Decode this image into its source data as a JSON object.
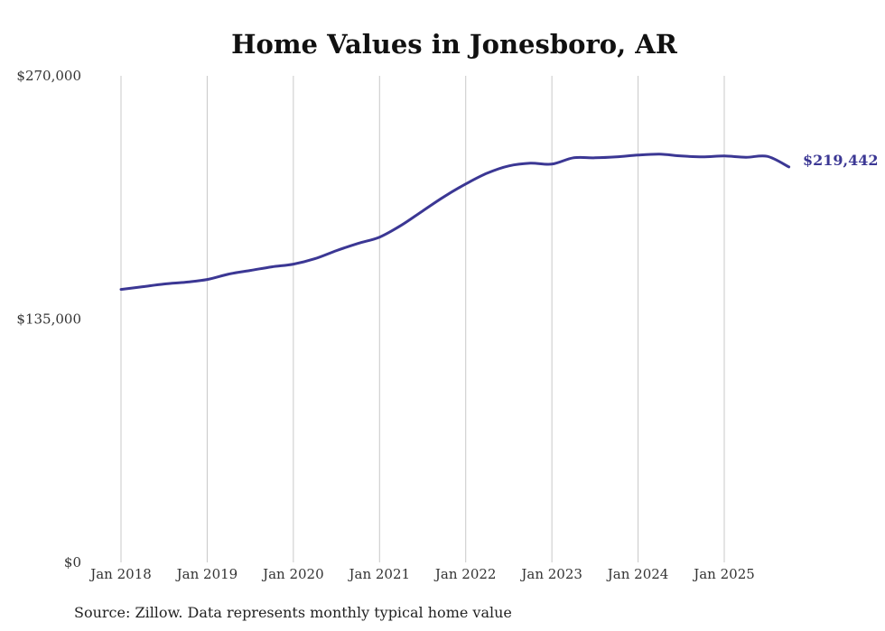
{
  "chart_data": {
    "type": "line",
    "title": "Home Values in Jonesboro, AR",
    "xlabel": "",
    "ylabel": "",
    "ylim": [
      0,
      270000
    ],
    "y_ticks": [
      "$0",
      "$135,000",
      "$270,000"
    ],
    "y_tick_values": [
      0,
      135000,
      270000
    ],
    "x_ticks": [
      "Jan 2018",
      "Jan 2019",
      "Jan 2020",
      "Jan 2021",
      "Jan 2022",
      "Jan 2023",
      "Jan 2024",
      "Jan 2025"
    ],
    "x_tick_values": [
      "2018-01",
      "2019-01",
      "2020-01",
      "2021-01",
      "2022-01",
      "2023-01",
      "2024-01",
      "2025-01"
    ],
    "grid": "vertical",
    "line_color": "#3b3794",
    "end_label": "$219,442",
    "series": [
      {
        "x": [
          "2018-01",
          "2018-04",
          "2018-07",
          "2018-10",
          "2019-01",
          "2019-04",
          "2019-07",
          "2019-10",
          "2020-01",
          "2020-04",
          "2020-07",
          "2020-10",
          "2021-01",
          "2021-04",
          "2021-07",
          "2021-10",
          "2022-01",
          "2022-04",
          "2022-07",
          "2022-10",
          "2023-01",
          "2023-04",
          "2023-07",
          "2023-10",
          "2024-01",
          "2024-04",
          "2024-07",
          "2024-10",
          "2025-01",
          "2025-04",
          "2025-07",
          "2025-10"
        ],
        "values": [
          151500,
          153000,
          154500,
          155500,
          157000,
          160000,
          162000,
          164000,
          165500,
          168500,
          173000,
          177000,
          180500,
          187000,
          195000,
          203000,
          210000,
          216000,
          220000,
          221500,
          221000,
          224500,
          224500,
          225000,
          226000,
          226500,
          225500,
          225000,
          225500,
          224800,
          225300,
          219442
        ]
      }
    ],
    "source": "Source: Zillow. Data represents monthly typical home value"
  }
}
